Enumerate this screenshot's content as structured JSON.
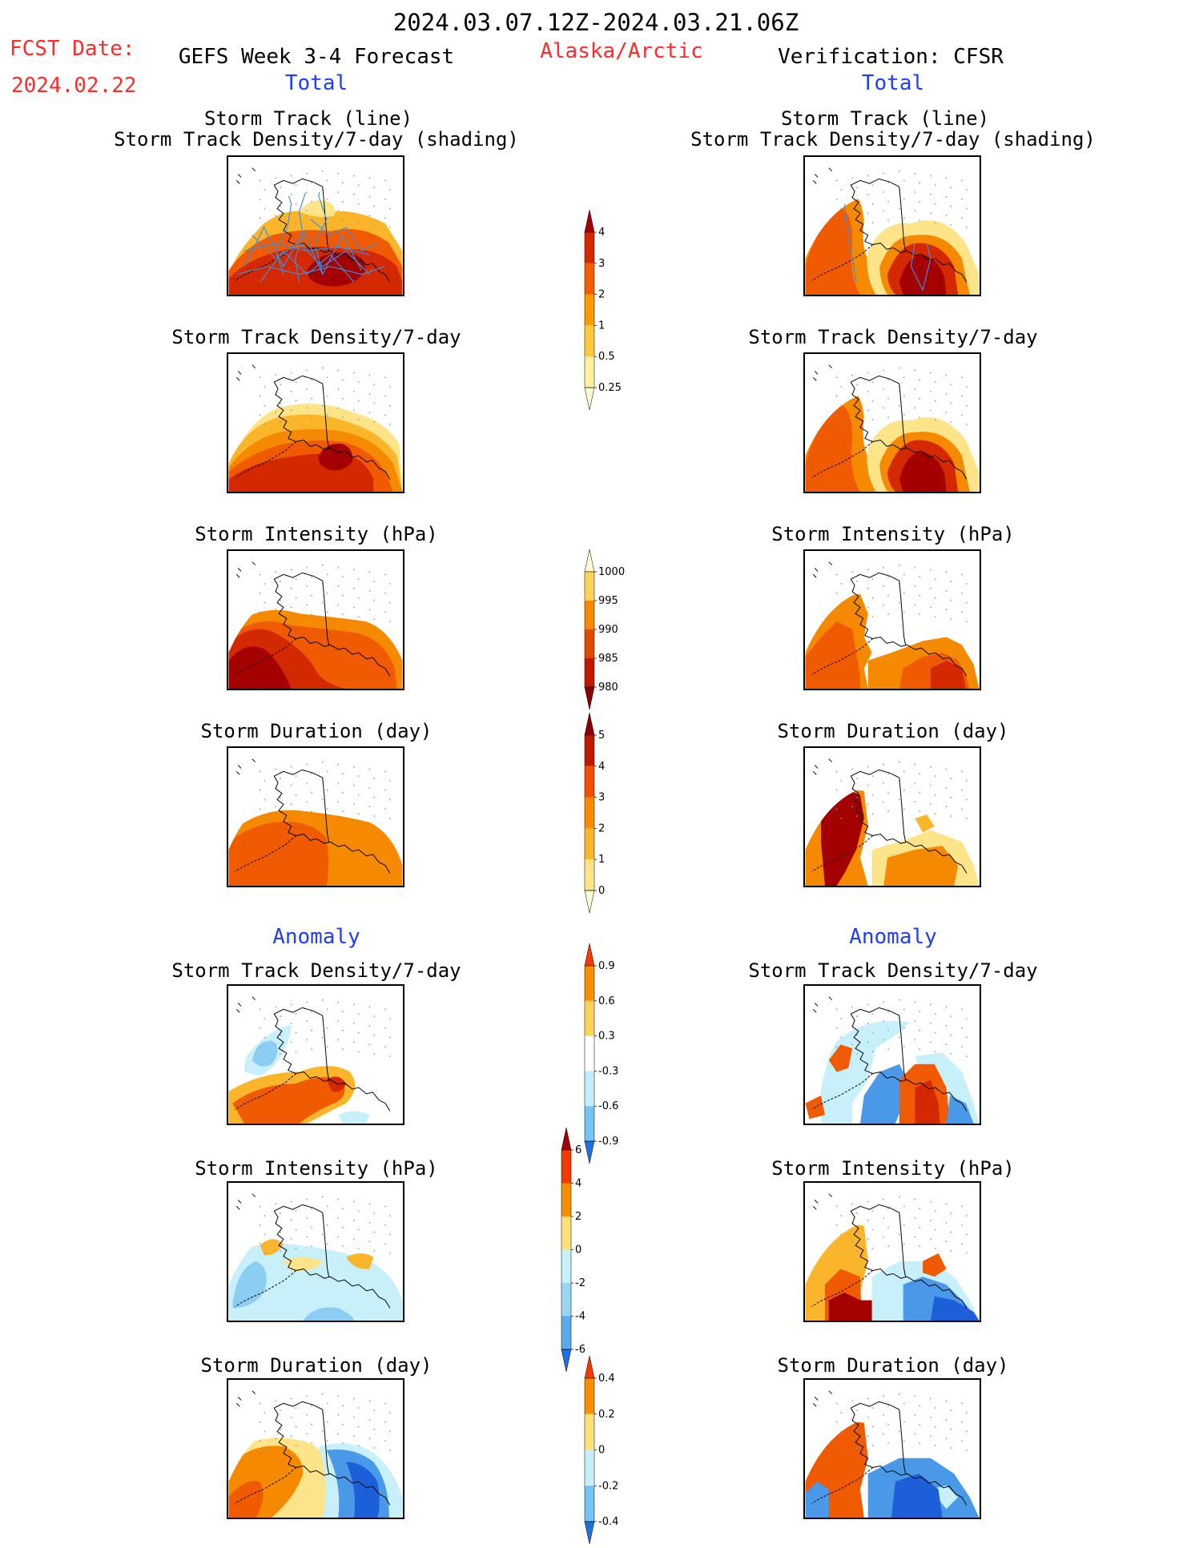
{
  "header": {
    "date_range": "2024.03.07.12Z-2024.03.21.06Z",
    "fcst_label": "FCST Date:",
    "fcst_date": "2024.02.22",
    "forecast_title": "GEFS Week 3-4 Forecast",
    "region": "Alaska/Arctic",
    "verification": "Verification: CFSR",
    "left_total": "Total",
    "right_total": "Total",
    "left_anomaly": "Anomaly",
    "right_anomaly": "Anomaly"
  },
  "panels": {
    "track_line": "Storm Track (line)",
    "track_density_shading": "Storm Track Density/7-day (shading)",
    "track_density": "Storm Track Density/7-day",
    "intensity": "Storm Intensity (hPa)",
    "duration": "Storm Duration (day)"
  },
  "colorbars": {
    "density": {
      "labels": [
        "4",
        "3",
        "2",
        "1",
        "0.5",
        "0.25"
      ],
      "colors": [
        "#a50000",
        "#d42800",
        "#f35f00",
        "#fb9b00",
        "#fdc93a",
        "#fff0a0",
        "#fffccf"
      ]
    },
    "intensity": {
      "labels": [
        "1000",
        "995",
        "990",
        "985",
        "980"
      ],
      "colors": [
        "#fffccf",
        "#fdd25a",
        "#f58a00",
        "#e04a00",
        "#c01800",
        "#8a0000"
      ]
    },
    "duration": {
      "labels": [
        "5",
        "4",
        "3",
        "2",
        "1",
        "0"
      ],
      "colors": [
        "#8a0000",
        "#c01800",
        "#f05000",
        "#f98b00",
        "#fcb52a",
        "#fde488",
        "#fffccf"
      ]
    },
    "density_anom": {
      "labels": [
        "0.9",
        "0.6",
        "0.3",
        "-0.3",
        "-0.6",
        "-0.9"
      ],
      "colors": [
        "#f33a00",
        "#f59000",
        "#fdd25a",
        "#ffffff",
        "#bfeefa",
        "#76c3f3",
        "#2070e0"
      ]
    },
    "intensity_anom": {
      "labels": [
        "6",
        "4",
        "2",
        "0",
        "-2",
        "-4",
        "-6"
      ],
      "colors": [
        "#a50000",
        "#f33a00",
        "#f59000",
        "#fde07a",
        "#c8f0fb",
        "#9ad4f5",
        "#5aa8ee",
        "#2070e0"
      ]
    },
    "duration_anom": {
      "labels": [
        "0.4",
        "0.2",
        "0",
        "-0.2",
        "-0.4"
      ],
      "colors": [
        "#f33a00",
        "#f59000",
        "#fde07a",
        "#c8f0fb",
        "#76c3f3",
        "#2070e0"
      ]
    }
  },
  "palette": {
    "d1": "#fffccf",
    "d2": "#fde488",
    "d3": "#fbb52a",
    "d4": "#f58a00",
    "d5": "#f05a00",
    "d6": "#d42800",
    "d7": "#a50000",
    "b1": "#c8f0fb",
    "b2": "#8ccdf3",
    "b3": "#4a98e8",
    "b4": "#1c5fd8",
    "track": "#3d8fe0"
  }
}
